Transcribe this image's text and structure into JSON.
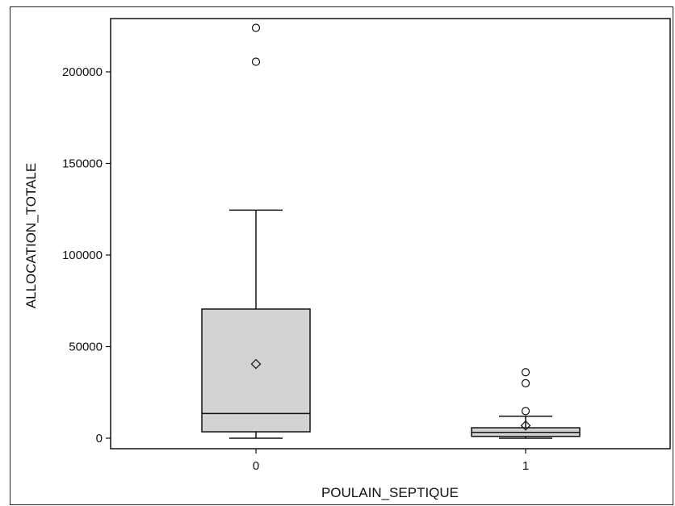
{
  "chart_data": {
    "type": "box",
    "xlabel": "POULAIN_SEPTIQUE",
    "ylabel": "ALLOCATION_TOTALE",
    "categories": [
      "0",
      "1"
    ],
    "ylim": [
      -6000,
      229000
    ],
    "yticks": [
      0,
      50000,
      100000,
      150000,
      200000
    ],
    "ytick_labels": [
      "0",
      "50000",
      "100000",
      "150000",
      "200000"
    ],
    "grid": false,
    "box_color": "#d3d3d3",
    "line_color": "#111111",
    "groups": [
      {
        "category": "0",
        "whisker_low": 0,
        "q1": 3500,
        "median": 13500,
        "q3": 70500,
        "whisker_high": 124500,
        "mean": 40500,
        "outliers": [
          205500,
          224000
        ]
      },
      {
        "category": "1",
        "whisker_low": 0,
        "q1": 1000,
        "median": 3200,
        "q3": 5700,
        "whisker_high": 12000,
        "mean": 6900,
        "outliers": [
          14800,
          30000,
          36000
        ]
      }
    ]
  }
}
